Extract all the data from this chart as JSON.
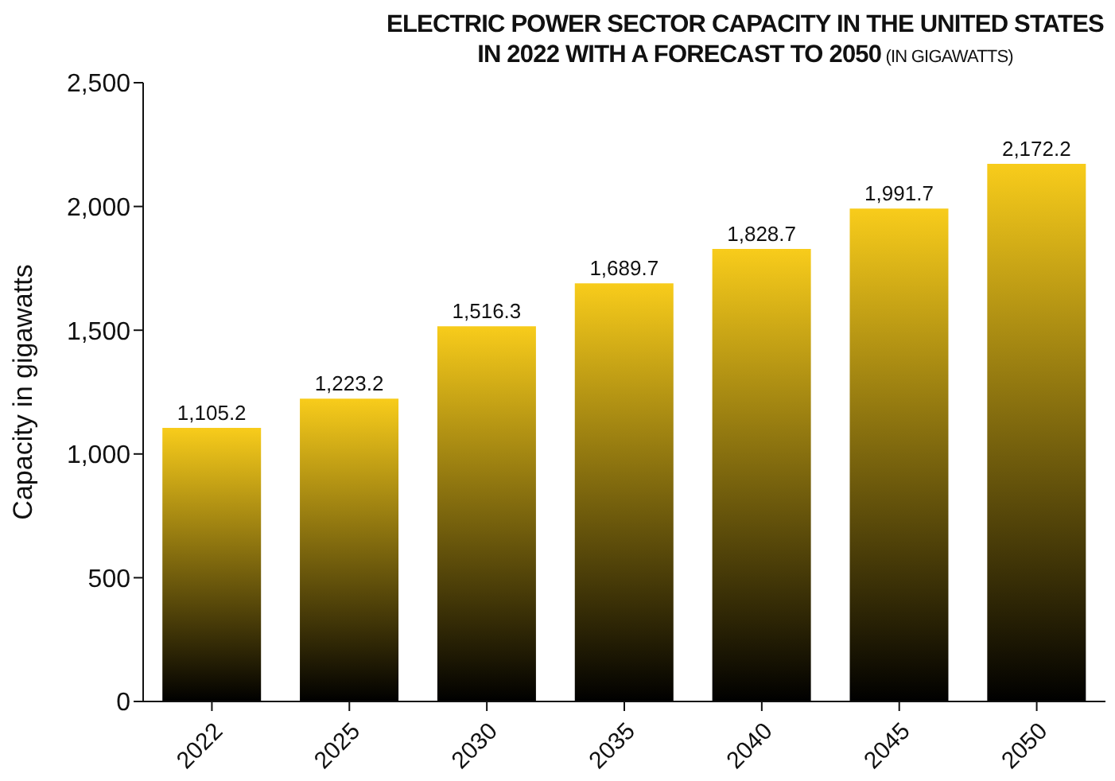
{
  "chart_data": {
    "type": "bar",
    "title": "ELECTRIC POWER SECTOR CAPACITY IN THE UNITED STATES IN 2022 WITH A FORECAST TO 2050",
    "subtitle": "(IN GIGAWATTS)",
    "ylabel": "Capacity in gigawatts",
    "categories": [
      "2022",
      "2025",
      "2030",
      "2035",
      "2040",
      "2045",
      "2050"
    ],
    "values": [
      1105.2,
      1223.2,
      1516.3,
      1689.7,
      1828.7,
      1991.7,
      2172.2
    ],
    "value_labels": [
      "1,105.2",
      "1,223.2",
      "1,516.3",
      "1,689.7",
      "1,828.7",
      "1,991.7",
      "2,172.2"
    ],
    "color": "#f8cc1b",
    "ylim": [
      0,
      2500
    ],
    "yticks": [
      0,
      500,
      {
        "value": 1000,
        "label": "1,000"
      },
      {
        "value": 1500,
        "label": "1,500"
      },
      {
        "value": 2000,
        "label": "2,000"
      },
      {
        "value": 2500,
        "label": "2,500"
      }
    ],
    "grid": false
  }
}
